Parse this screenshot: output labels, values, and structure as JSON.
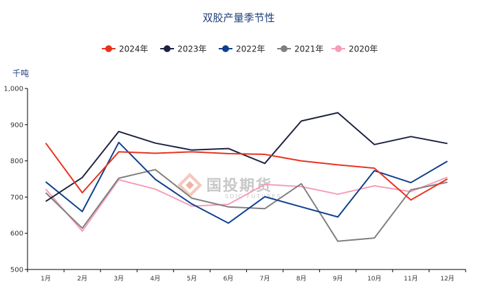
{
  "chart_data": {
    "type": "line",
    "title": "双胶产量季节性",
    "ylabel": "千吨",
    "xlabel": "",
    "ylim": [
      500,
      1000
    ],
    "yticks": [
      "500",
      "600",
      "700",
      "800",
      "900",
      "1,000"
    ],
    "ytick_values": [
      500,
      600,
      700,
      800,
      900,
      1000
    ],
    "categories": [
      "1月",
      "2月",
      "3月",
      "4月",
      "5月",
      "6月",
      "7月",
      "8月",
      "9月",
      "10月",
      "11月",
      "12月"
    ],
    "legend_position": "top",
    "grid": false,
    "series": [
      {
        "name": "2024年",
        "color": "#e8321e",
        "values": [
          849,
          712,
          825,
          821,
          825,
          820,
          818,
          800,
          789,
          780,
          692,
          750
        ]
      },
      {
        "name": "2023年",
        "color": "#1c2140",
        "values": [
          688,
          754,
          881,
          849,
          830,
          834,
          793,
          910,
          933,
          845,
          867,
          848
        ]
      },
      {
        "name": "2022年",
        "color": "#0e3f8e",
        "values": [
          742,
          660,
          851,
          749,
          681,
          628,
          701,
          673,
          645,
          773,
          740,
          799
        ]
      },
      {
        "name": "2021年",
        "color": "#7f7f7f",
        "values": [
          712,
          614,
          752,
          776,
          697,
          673,
          668,
          737,
          578,
          587,
          720,
          741
        ]
      },
      {
        "name": "2020年",
        "color": "#f69db6",
        "values": [
          722,
          606,
          748,
          722,
          675,
          680,
          735,
          729,
          708,
          731,
          715,
          755
        ]
      }
    ]
  },
  "watermark": {
    "text": "国投期货",
    "sub": "SDIC FUTURES"
  }
}
